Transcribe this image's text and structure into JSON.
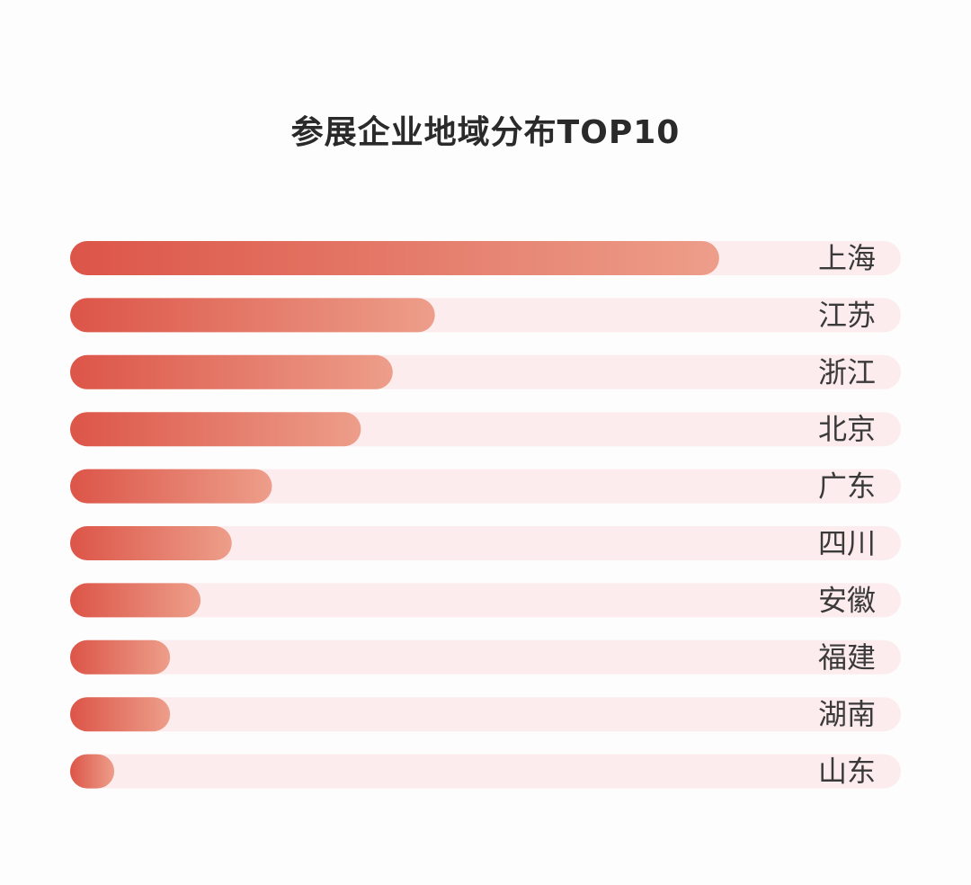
{
  "chart_data": {
    "type": "bar",
    "orientation": "horizontal",
    "title": "参展企业地域分布TOP10",
    "categories": [
      "上海",
      "江苏",
      "浙江",
      "北京",
      "广东",
      "四川",
      "安徽",
      "福建",
      "湖南",
      "山东"
    ],
    "values": [
      100,
      56.2,
      49.7,
      44.8,
      31.1,
      24.9,
      20.1,
      15.4,
      15.4,
      6.8
    ],
    "xlim": [
      0,
      128
    ],
    "grid": false,
    "legend": "none",
    "colors": {
      "bar_start": "#dc5548",
      "bar_end": "#ed9e8a",
      "track": "#fdeced",
      "label": "#3a3a3a",
      "title": "#2a2a2a"
    }
  }
}
